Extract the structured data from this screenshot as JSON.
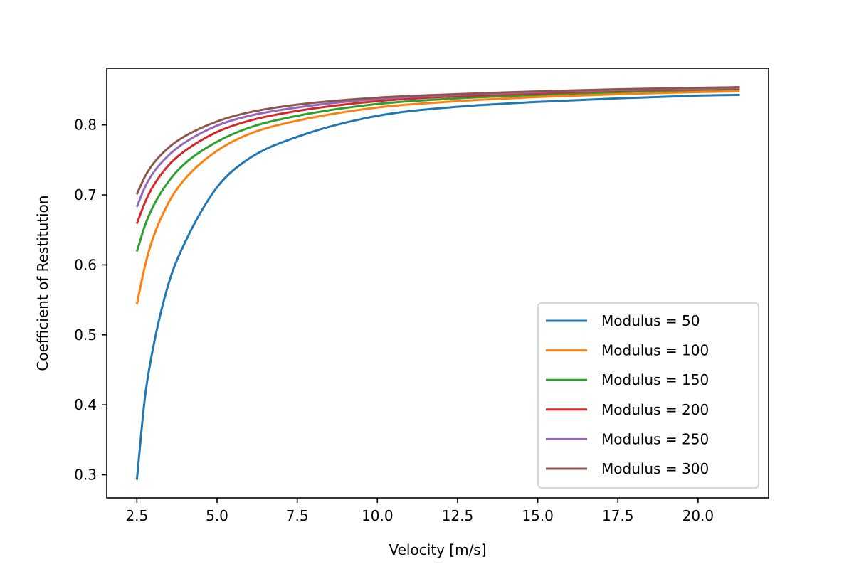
{
  "chart_data": {
    "type": "line",
    "title": "",
    "xlabel": "Velocity [m/s]",
    "ylabel": "Coefficient of Restitution",
    "xlim": [
      1.56,
      22.2
    ],
    "ylim": [
      0.267,
      0.881
    ],
    "xticks": [
      2.5,
      5.0,
      7.5,
      10.0,
      12.5,
      15.0,
      17.5,
      20.0
    ],
    "xtick_labels": [
      "2.5",
      "5.0",
      "7.5",
      "10.0",
      "12.5",
      "15.0",
      "17.5",
      "20.0"
    ],
    "yticks": [
      0.3,
      0.4,
      0.5,
      0.6,
      0.7,
      0.8
    ],
    "ytick_labels": [
      "0.3",
      "0.4",
      "0.5",
      "0.6",
      "0.7",
      "0.8"
    ],
    "grid": false,
    "legend_position": "lower-right",
    "x": [
      2.5,
      2.75,
      3.0,
      3.5,
      4.0,
      5.0,
      6.0,
      7.5,
      10.0,
      12.5,
      15.0,
      17.5,
      20.0,
      21.3
    ],
    "series": [
      {
        "name": "Modulus = 50",
        "color": "#1f77b4",
        "values": [
          0.293,
          0.41,
          0.48,
          0.575,
          0.632,
          0.711,
          0.752,
          0.783,
          0.813,
          0.826,
          0.833,
          0.838,
          0.842,
          0.843
        ]
      },
      {
        "name": "Modulus = 100",
        "color": "#ff7f0e",
        "values": [
          0.544,
          0.598,
          0.638,
          0.69,
          0.723,
          0.763,
          0.787,
          0.806,
          0.825,
          0.834,
          0.84,
          0.844,
          0.847,
          0.848
        ]
      },
      {
        "name": "Modulus = 150",
        "color": "#2ca02c",
        "values": [
          0.619,
          0.656,
          0.683,
          0.72,
          0.745,
          0.776,
          0.796,
          0.813,
          0.83,
          0.838,
          0.843,
          0.847,
          0.85,
          0.851
        ]
      },
      {
        "name": "Modulus = 200",
        "color": "#d62728",
        "values": [
          0.659,
          0.689,
          0.712,
          0.743,
          0.763,
          0.79,
          0.806,
          0.82,
          0.834,
          0.841,
          0.845,
          0.849,
          0.851,
          0.852
        ]
      },
      {
        "name": "Modulus = 250",
        "color": "#9467bd",
        "values": [
          0.683,
          0.711,
          0.731,
          0.757,
          0.775,
          0.799,
          0.813,
          0.825,
          0.837,
          0.843,
          0.847,
          0.85,
          0.852,
          0.853
        ]
      },
      {
        "name": "Modulus = 300",
        "color": "#8c564b",
        "values": [
          0.701,
          0.726,
          0.744,
          0.768,
          0.784,
          0.805,
          0.818,
          0.829,
          0.839,
          0.844,
          0.848,
          0.851,
          0.853,
          0.854
        ]
      }
    ]
  }
}
